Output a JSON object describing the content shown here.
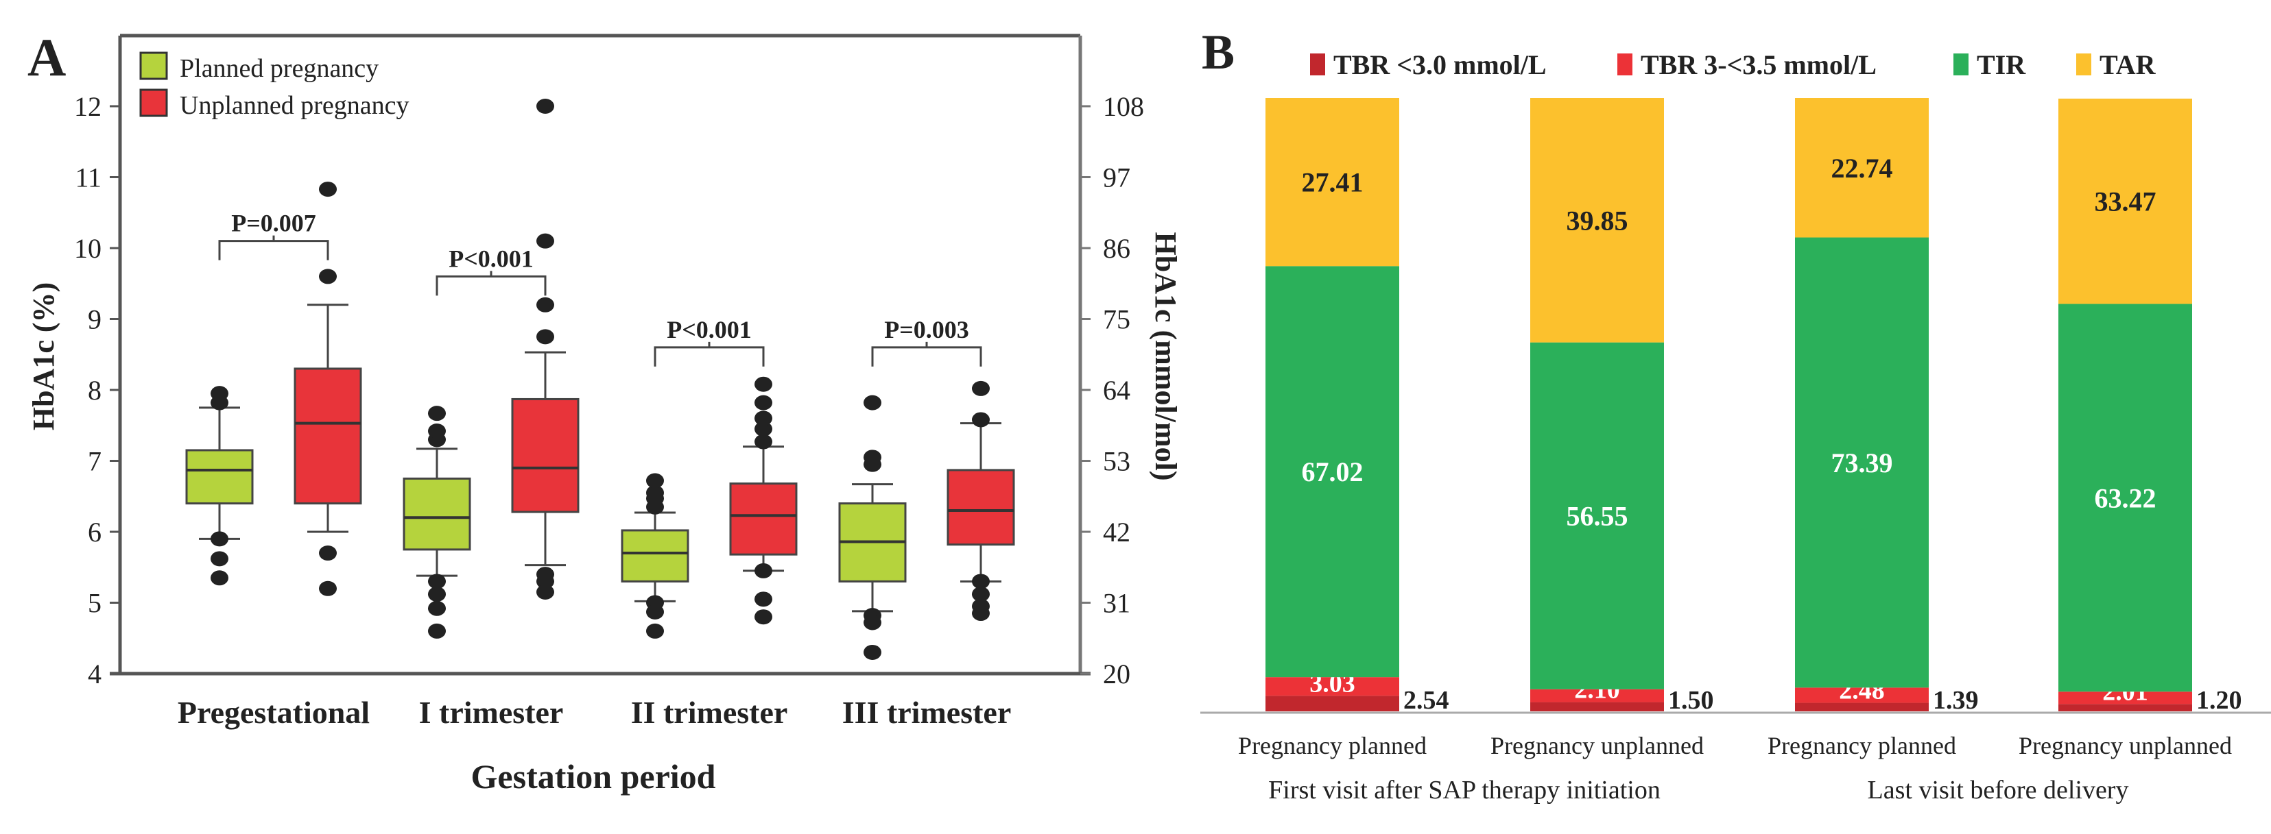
{
  "chart_data": [
    {
      "type": "boxplot",
      "panel_label": "A",
      "title": "",
      "xlabel": "Gestation period",
      "ylabel": "HbA1c (%)",
      "ylabel_right": "HbA1c (mmol/mol)",
      "ylim": [
        4,
        12.8
      ],
      "yticks": [
        4,
        5,
        6,
        7,
        8,
        9,
        10,
        11,
        12
      ],
      "yticks_right": [
        20,
        31,
        42,
        53,
        64,
        75,
        86,
        97,
        108
      ],
      "grid": false,
      "legend_position": "top-left",
      "categories": [
        "Pregestational",
        "I trimester",
        "II trimester",
        "III trimester"
      ],
      "series": [
        {
          "name": "Planned pregnancy",
          "color": "#b5d33d",
          "boxes": [
            {
              "q1": 6.4,
              "median": 6.87,
              "q3": 7.15,
              "whisker_low": 5.9,
              "whisker_high": 7.75,
              "outliers": [
                7.82,
                7.95,
                5.9,
                5.62,
                5.35
              ]
            },
            {
              "q1": 5.75,
              "median": 6.2,
              "q3": 6.75,
              "whisker_low": 5.38,
              "whisker_high": 7.17,
              "outliers": [
                7.3,
                7.42,
                7.67,
                5.3,
                5.12,
                4.92,
                4.6
              ]
            },
            {
              "q1": 5.3,
              "median": 5.7,
              "q3": 6.02,
              "whisker_low": 5.02,
              "whisker_high": 6.27,
              "outliers": [
                6.35,
                6.47,
                6.55,
                6.72,
                5.0,
                4.87,
                4.6
              ]
            },
            {
              "q1": 5.3,
              "median": 5.86,
              "q3": 6.4,
              "whisker_low": 4.88,
              "whisker_high": 6.67,
              "outliers": [
                6.95,
                7.05,
                7.82,
                4.82,
                4.72,
                4.3
              ]
            }
          ]
        },
        {
          "name": "Unplanned pregnancy",
          "color": "#e8343a",
          "boxes": [
            {
              "q1": 6.4,
              "median": 7.53,
              "q3": 8.3,
              "whisker_low": 6.0,
              "whisker_high": 9.2,
              "outliers": [
                9.6,
                10.83,
                5.7,
                5.2
              ]
            },
            {
              "q1": 6.28,
              "median": 6.9,
              "q3": 7.87,
              "whisker_low": 5.53,
              "whisker_high": 8.53,
              "outliers": [
                8.75,
                9.2,
                10.1,
                12.0,
                5.4,
                5.3,
                5.15
              ]
            },
            {
              "q1": 5.68,
              "median": 6.23,
              "q3": 6.68,
              "whisker_low": 5.45,
              "whisker_high": 7.2,
              "outliers": [
                7.27,
                7.45,
                7.6,
                7.82,
                8.08,
                5.45,
                5.05,
                4.8
              ]
            },
            {
              "q1": 5.82,
              "median": 6.3,
              "q3": 6.87,
              "whisker_low": 5.3,
              "whisker_high": 7.53,
              "outliers": [
                7.58,
                8.02,
                5.3,
                5.12,
                4.95,
                4.85
              ]
            }
          ]
        }
      ],
      "annotations": [
        {
          "category": "Pregestational",
          "text": "P=0.007",
          "bracket_y": 10.1
        },
        {
          "category": "I trimester",
          "text": "P<0.001",
          "bracket_y": 9.6
        },
        {
          "category": "II trimester",
          "text": "P<0.001",
          "bracket_y": 8.6
        },
        {
          "category": "III trimester",
          "text": "P=0.003",
          "bracket_y": 8.6
        }
      ]
    },
    {
      "type": "stacked_bar",
      "panel_label": "B",
      "title": "",
      "ylim": [
        0,
        100
      ],
      "grid": false,
      "legend_position": "top",
      "categories": [
        "Pregnancy planned",
        "Pregnancy unplanned",
        "Pregnancy planned",
        "Pregnancy unplanned"
      ],
      "groups": [
        {
          "label": "First visit after SAP therapy initiation",
          "categories": [
            0,
            1
          ]
        },
        {
          "label": "Last visit before delivery",
          "categories": [
            2,
            3
          ]
        }
      ],
      "series": [
        {
          "name": "TBR <3.0 mmol/L",
          "color": "#c1272d",
          "values": [
            2.54,
            1.5,
            1.39,
            1.2
          ]
        },
        {
          "name": "TBR 3-<3.5 mmol/L",
          "color": "#ec3237",
          "values": [
            3.03,
            2.1,
            2.48,
            2.01
          ]
        },
        {
          "name": "TIR",
          "color": "#2bb05a",
          "values": [
            67.02,
            56.55,
            73.39,
            63.22
          ]
        },
        {
          "name": "TAR",
          "color": "#fcc12d",
          "values": [
            27.41,
            39.85,
            22.74,
            33.47
          ]
        }
      ]
    }
  ]
}
